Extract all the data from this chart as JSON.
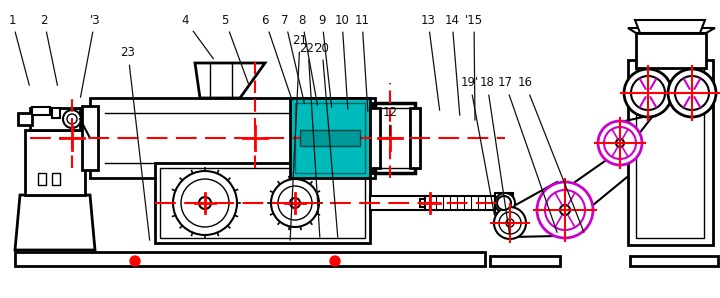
{
  "bg_color": "#ffffff",
  "lc": "#000000",
  "rc": "#ff0000",
  "tc": "#00bbbb",
  "mc": "#cc00cc",
  "fig_width": 7.2,
  "fig_height": 2.98,
  "dpi": 100
}
